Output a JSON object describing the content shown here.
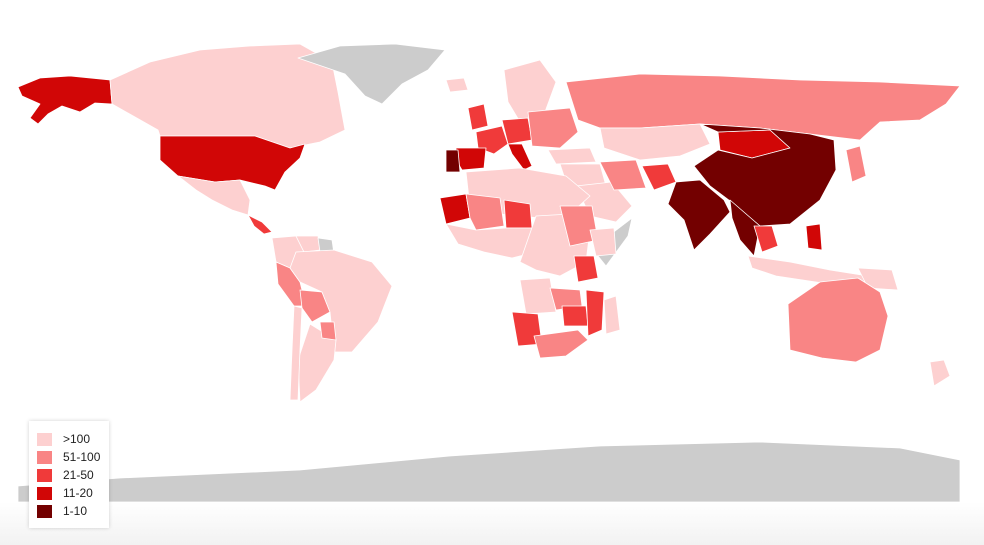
{
  "colors": {
    "gt100": "#fdd0d0",
    "c51_100": "#f98585",
    "c21_50": "#f03a3a",
    "c11_20": "#d10606",
    "c1_10": "#730000",
    "no_data": "#cccccc",
    "border": "#ffffff"
  },
  "legend": {
    "items": [
      {
        "label": ">100",
        "color": "#fdd0d0"
      },
      {
        "label": "51-100",
        "color": "#f98585"
      },
      {
        "label": "21-50",
        "color": "#f03a3a"
      },
      {
        "label": "11-20",
        "color": "#d10606"
      },
      {
        "label": "1-10",
        "color": "#730000"
      }
    ]
  },
  "regions": [
    {
      "name": "Alaska (United States)",
      "bin": "11-20"
    },
    {
      "name": "Canada",
      "bin": ">100"
    },
    {
      "name": "Greenland",
      "bin": "no data"
    },
    {
      "name": "United States",
      "bin": "11-20"
    },
    {
      "name": "Mexico",
      "bin": ">100"
    },
    {
      "name": "Central America",
      "bin": "21-50"
    },
    {
      "name": "Colombia",
      "bin": ">100"
    },
    {
      "name": "Venezuela",
      "bin": ">100"
    },
    {
      "name": "Guyana",
      "bin": "no data"
    },
    {
      "name": "Peru",
      "bin": "51-100"
    },
    {
      "name": "Bolivia",
      "bin": "51-100"
    },
    {
      "name": "Brazil",
      "bin": ">100"
    },
    {
      "name": "Argentina",
      "bin": ">100"
    },
    {
      "name": "Chile",
      "bin": ">100"
    },
    {
      "name": "Paraguay",
      "bin": "51-100"
    },
    {
      "name": "Iceland",
      "bin": ">100"
    },
    {
      "name": "Scandinavia",
      "bin": ">100"
    },
    {
      "name": "United Kingdom",
      "bin": "21-50"
    },
    {
      "name": "France",
      "bin": "21-50"
    },
    {
      "name": "Spain",
      "bin": "11-20"
    },
    {
      "name": "Portugal",
      "bin": "1-10"
    },
    {
      "name": "Central Europe",
      "bin": "21-50"
    },
    {
      "name": "Italy",
      "bin": "11-20"
    },
    {
      "name": "Eastern Europe",
      "bin": "51-100"
    },
    {
      "name": "Russia",
      "bin": "51-100"
    },
    {
      "name": "Turkey",
      "bin": ">100"
    },
    {
      "name": "Middle East",
      "bin": ">100"
    },
    {
      "name": "Saudi Arabia",
      "bin": ">100"
    },
    {
      "name": "Iran",
      "bin": "51-100"
    },
    {
      "name": "Afghanistan",
      "bin": "21-50"
    },
    {
      "name": "Kazakhstan",
      "bin": ">100"
    },
    {
      "name": "Mongolia",
      "bin": "11-20"
    },
    {
      "name": "China",
      "bin": "1-10"
    },
    {
      "name": "India",
      "bin": "1-10"
    },
    {
      "name": "Southeast Asia",
      "bin": "1-10"
    },
    {
      "name": "Thailand",
      "bin": "21-50"
    },
    {
      "name": "Japan",
      "bin": "51-100"
    },
    {
      "name": "Philippines",
      "bin": "11-20"
    },
    {
      "name": "Indonesia",
      "bin": ">100"
    },
    {
      "name": "Papua New Guinea",
      "bin": ">100"
    },
    {
      "name": "Australia",
      "bin": "51-100"
    },
    {
      "name": "New Zealand",
      "bin": ">100"
    },
    {
      "name": "North Africa",
      "bin": ">100"
    },
    {
      "name": "Mauritania",
      "bin": "11-20"
    },
    {
      "name": "Mali",
      "bin": "51-100"
    },
    {
      "name": "Niger",
      "bin": "21-50"
    },
    {
      "name": "West Africa",
      "bin": ">100"
    },
    {
      "name": "Central Africa",
      "bin": ">100"
    },
    {
      "name": "Sudan",
      "bin": "51-100"
    },
    {
      "name": "Somalia",
      "bin": "no data"
    },
    {
      "name": "Ethiopia",
      "bin": ">100"
    },
    {
      "name": "Kenya",
      "bin": "21-50"
    },
    {
      "name": "Angola",
      "bin": ">100"
    },
    {
      "name": "Namibia",
      "bin": "21-50"
    },
    {
      "name": "Zambia",
      "bin": "51-100"
    },
    {
      "name": "Zimbabwe",
      "bin": "21-50"
    },
    {
      "name": "Mozambique",
      "bin": "21-50"
    },
    {
      "name": "South Africa",
      "bin": "51-100"
    },
    {
      "name": "Madagascar",
      "bin": ">100"
    },
    {
      "name": "Antarctica",
      "bin": "no data"
    }
  ]
}
